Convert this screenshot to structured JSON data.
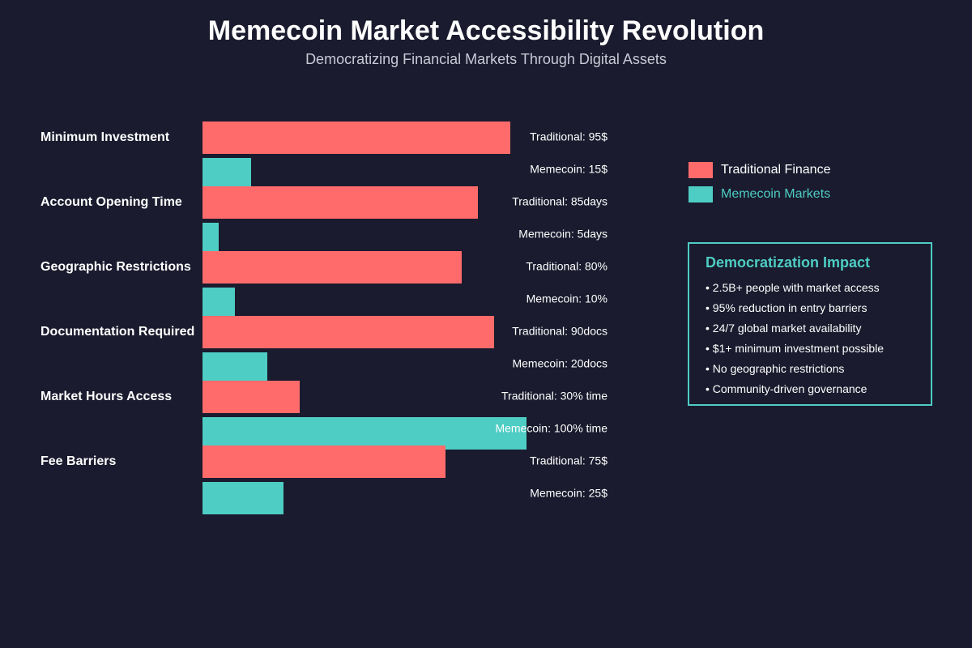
{
  "header": {
    "title": "Memecoin Market Accessibility Revolution",
    "subtitle": "Democratizing Financial Markets Through Digital Assets"
  },
  "colors": {
    "background": "#1a1b2e",
    "traditional": "#ff6b6b",
    "memecoin": "#4ecdc4"
  },
  "legend": {
    "items": [
      {
        "label": "Traditional Finance",
        "color": "#ff6b6b",
        "text_color": "#ffffff"
      },
      {
        "label": "Memecoin Markets",
        "color": "#4ecdc4",
        "text_color": "#4ecdc4"
      }
    ]
  },
  "impact": {
    "title": "Democratization Impact",
    "items": [
      "• 2.5B+ people with market access",
      "• 95% reduction in entry barriers",
      "• 24/7 global market availability",
      "• $1+ minimum investment possible",
      "• No geographic restrictions",
      "• Community-driven governance"
    ]
  },
  "chart_data": {
    "type": "bar",
    "orientation": "horizontal",
    "title": "Memecoin Market Accessibility Revolution",
    "subtitle": "Democratizing Financial Markets Through Digital Assets",
    "categories": [
      "Minimum Investment",
      "Account Opening Time",
      "Geographic Restrictions",
      "Documentation Required",
      "Market Hours Access",
      "Fee Barriers"
    ],
    "series": [
      {
        "name": "Traditional Finance",
        "values": [
          95,
          85,
          80,
          90,
          30,
          75
        ],
        "labels": [
          "Traditional: 95$",
          "Traditional: 85days",
          "Traditional: 80%",
          "Traditional: 90docs",
          "Traditional: 30% time",
          "Traditional: 75$"
        ]
      },
      {
        "name": "Memecoin Markets",
        "values": [
          15,
          5,
          10,
          20,
          100,
          25
        ],
        "labels": [
          "Memecoin: 15$",
          "Memecoin: 5days",
          "Memecoin: 10%",
          "Memecoin: 20docs",
          "Memecoin: 100% time",
          "Memecoin: 25$"
        ]
      }
    ],
    "xlim": [
      0,
      100
    ],
    "grid": false,
    "legend_position": "right"
  }
}
